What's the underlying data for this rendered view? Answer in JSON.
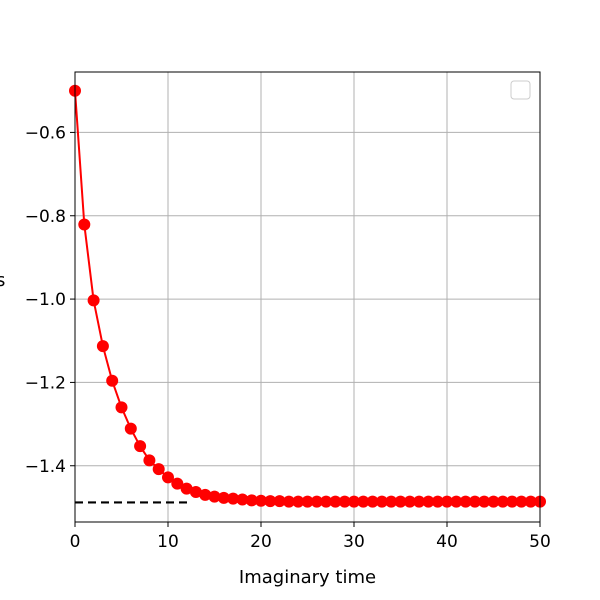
{
  "chart_data": {
    "type": "line",
    "title": "",
    "xlabel": "Imaginary time",
    "ylabel": "",
    "xlim": [
      0,
      50
    ],
    "ylim": [
      -1.535,
      -0.455
    ],
    "xticks": [
      0,
      10,
      20,
      30,
      40,
      50
    ],
    "xtick_labels": [
      "0",
      "10",
      "20",
      "30",
      "40",
      "50"
    ],
    "yticks": [
      -1.4,
      -1.2,
      -1.0,
      -0.8,
      -0.6
    ],
    "ytick_labels": [
      "−1.4",
      "−1.2",
      "−1.0",
      "−0.8",
      "−0.6"
    ],
    "grid": true,
    "legend": "top-right (empty)",
    "series": [
      {
        "color": "#ff0000",
        "marker": "circle",
        "x": [
          0,
          1,
          2,
          3,
          4,
          5,
          6,
          7,
          8,
          9,
          10,
          11,
          12,
          13,
          14,
          15,
          16,
          17,
          18,
          19,
          20,
          21,
          22,
          23,
          24,
          25,
          26,
          27,
          28,
          29,
          30,
          31,
          32,
          33,
          34,
          35,
          36,
          37,
          38,
          39,
          40,
          41,
          42,
          43,
          44,
          45,
          46,
          47,
          48,
          49,
          50
        ],
        "y": [
          -0.5,
          -0.821,
          -1.003,
          -1.113,
          -1.196,
          -1.26,
          -1.311,
          -1.353,
          -1.387,
          -1.408,
          -1.428,
          -1.443,
          -1.455,
          -1.463,
          -1.47,
          -1.474,
          -1.477,
          -1.479,
          -1.481,
          -1.483,
          -1.484,
          -1.485,
          -1.485,
          -1.486,
          -1.486,
          -1.486,
          -1.486,
          -1.486,
          -1.486,
          -1.486,
          -1.486,
          -1.486,
          -1.486,
          -1.486,
          -1.486,
          -1.486,
          -1.486,
          -1.486,
          -1.486,
          -1.486,
          -1.486,
          -1.486,
          -1.486,
          -1.486,
          -1.486,
          -1.486,
          -1.486,
          -1.486,
          -1.486,
          -1.486,
          -1.486
        ]
      }
    ],
    "reference_line": {
      "style": "dashed",
      "color": "#000000",
      "y": -1.488,
      "x": [
        0,
        12.3
      ]
    }
  }
}
